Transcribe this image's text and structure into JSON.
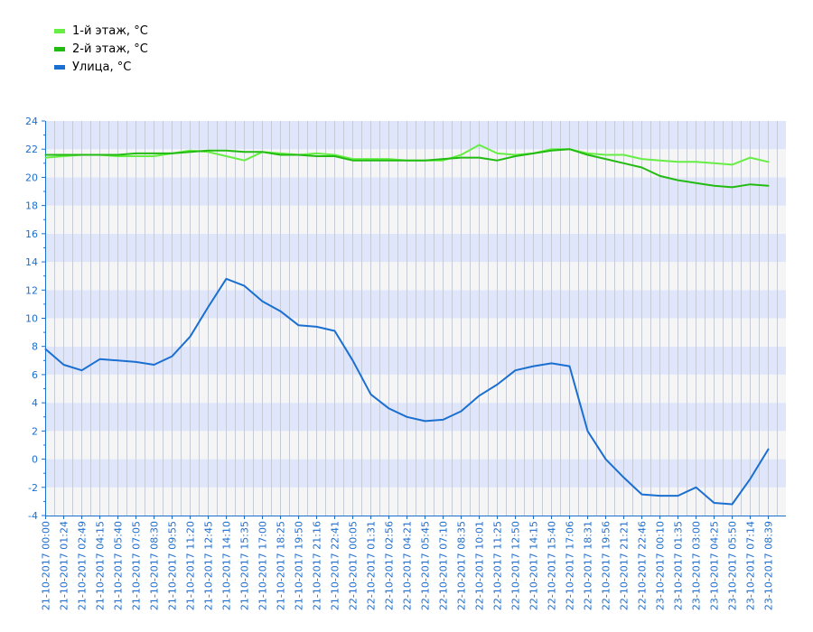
{
  "chart_data": {
    "type": "line",
    "title": "",
    "xlabel": "",
    "ylabel": "",
    "ylim": [
      -4,
      24
    ],
    "yticks": [
      -4,
      -2,
      0,
      2,
      4,
      6,
      8,
      10,
      12,
      14,
      16,
      18,
      20,
      22,
      24
    ],
    "grid": true,
    "legend_position": "top-left",
    "x_labels": [
      "21-10-2017 00:00",
      "21-10-2017 01:24",
      "21-10-2017 02:49",
      "21-10-2017 04:15",
      "21-10-2017 05:40",
      "21-10-2017 07:05",
      "21-10-2017 08:30",
      "21-10-2017 09:55",
      "21-10-2017 11:20",
      "21-10-2017 12:45",
      "21-10-2017 14:10",
      "21-10-2017 15:35",
      "21-10-2017 17:00",
      "21-10-2017 18:25",
      "21-10-2017 19:50",
      "21-10-2017 21:16",
      "21-10-2017 22:41",
      "22-10-2017 00:05",
      "22-10-2017 01:31",
      "22-10-2017 02:56",
      "22-10-2017 04:21",
      "22-10-2017 05:45",
      "22-10-2017 07:10",
      "22-10-2017 08:35",
      "22-10-2017 10:01",
      "22-10-2017 11:25",
      "22-10-2017 12:50",
      "22-10-2017 14:15",
      "22-10-2017 15:40",
      "22-10-2017 17:06",
      "22-10-2017 18:31",
      "22-10-2017 19:56",
      "22-10-2017 21:21",
      "22-10-2017 22:46",
      "23-10-2017 00:10",
      "23-10-2017 01:35",
      "23-10-2017 03:00",
      "23-10-2017 04:25",
      "23-10-2017 05:50",
      "23-10-2017 07:14",
      "23-10-2017 08:39"
    ],
    "series": [
      {
        "name": "1-й этаж, °C",
        "color": "#66ee44",
        "values": [
          21.4,
          21.5,
          21.6,
          21.6,
          21.5,
          21.5,
          21.5,
          21.7,
          21.9,
          21.8,
          21.5,
          21.2,
          21.8,
          21.7,
          21.6,
          21.7,
          21.6,
          21.3,
          21.3,
          21.3,
          21.2,
          21.2,
          21.2,
          21.6,
          22.3,
          21.7,
          21.6,
          21.7,
          22.0,
          22.0,
          21.7,
          21.6,
          21.6,
          21.3,
          21.2,
          21.1,
          21.1,
          21.0,
          20.9,
          21.4,
          21.1
        ]
      },
      {
        "name": "2-й этаж, °C",
        "color": "#22bb11",
        "values": [
          21.6,
          21.6,
          21.6,
          21.6,
          21.6,
          21.7,
          21.7,
          21.7,
          21.8,
          21.9,
          21.9,
          21.8,
          21.8,
          21.6,
          21.6,
          21.5,
          21.5,
          21.2,
          21.2,
          21.2,
          21.2,
          21.2,
          21.3,
          21.4,
          21.4,
          21.2,
          21.5,
          21.7,
          21.9,
          22.0,
          21.6,
          21.3,
          21.0,
          20.7,
          20.1,
          19.8,
          19.6,
          19.4,
          19.3,
          19.5,
          19.4
        ]
      },
      {
        "name": "Улица, °C",
        "color": "#1a6fd1",
        "values": [
          7.8,
          6.7,
          6.3,
          7.1,
          7.0,
          6.9,
          6.7,
          7.3,
          8.7,
          10.8,
          12.8,
          12.3,
          11.2,
          10.5,
          9.5,
          9.4,
          9.1,
          7.0,
          4.6,
          3.6,
          3.0,
          2.7,
          2.8,
          3.4,
          4.5,
          5.3,
          6.3,
          6.6,
          6.8,
          6.6,
          2.0,
          0.0,
          -1.3,
          -2.5,
          -2.6,
          -2.6,
          -2.0,
          -3.1,
          -3.2,
          -1.4,
          0.7
        ]
      }
    ]
  }
}
